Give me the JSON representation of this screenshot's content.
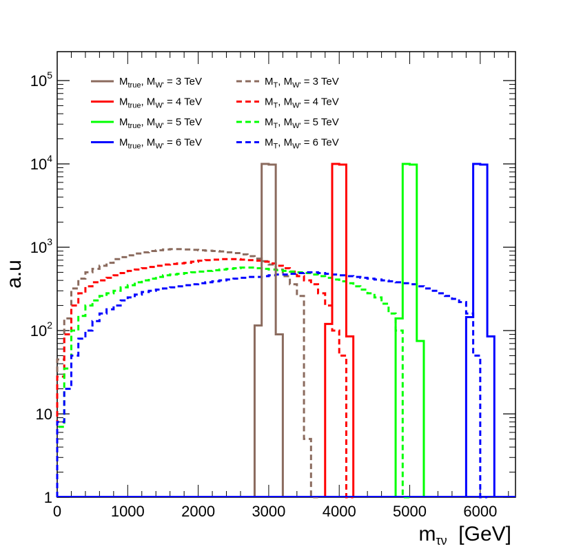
{
  "chart_data": {
    "type": "line",
    "style": "step-histogram",
    "title": "",
    "xlabel": "m",
    "xlabel_sub": "τν",
    "xlabel_unit": "[GeV]",
    "ylabel": "a.u",
    "xlim": [
      0,
      6500
    ],
    "ylim": [
      1,
      150000
    ],
    "yscale": "log",
    "bin_width": 100,
    "grid": false,
    "legend_position": "top-left",
    "x_tick_labels": [
      {
        "v": 0,
        "t": "0"
      },
      {
        "v": 1000,
        "t": "1000"
      },
      {
        "v": 2000,
        "t": "2000"
      },
      {
        "v": 3000,
        "t": "3000"
      },
      {
        "v": 4000,
        "t": "4000"
      },
      {
        "v": 5000,
        "t": "5000"
      },
      {
        "v": 6000,
        "t": "6000"
      }
    ],
    "y_tick_labels": [
      {
        "v": 1,
        "base": "1",
        "exp": ""
      },
      {
        "v": 10,
        "base": "10",
        "exp": ""
      },
      {
        "v": 100,
        "base": "10",
        "exp": "2"
      },
      {
        "v": 1000,
        "base": "10",
        "exp": "3"
      },
      {
        "v": 10000,
        "base": "10",
        "exp": "4"
      },
      {
        "v": 100000,
        "base": "10",
        "exp": "5"
      }
    ],
    "series": [
      {
        "name": "true-3tev",
        "label_main": "M",
        "label_sub": "true",
        "label_rest": ", M",
        "label_sub2": "W'",
        "label_end": " = 3 TeV",
        "color": "#8b6b5e",
        "dashed": false,
        "start": 2800,
        "values": [
          115,
          10000,
          9800,
          90
        ]
      },
      {
        "name": "true-4tev",
        "label_main": "M",
        "label_sub": "true",
        "label_rest": ", M",
        "label_sub2": "W'",
        "label_end": " = 4 TeV",
        "color": "#ff0000",
        "dashed": false,
        "start": 3800,
        "values": [
          120,
          10000,
          9800,
          85
        ]
      },
      {
        "name": "true-5tev",
        "label_main": "M",
        "label_sub": "true",
        "label_rest": ", M",
        "label_sub2": "W'",
        "label_end": " = 5 TeV",
        "color": "#00ff00",
        "dashed": false,
        "start": 4800,
        "values": [
          140,
          10000,
          9800,
          75
        ]
      },
      {
        "name": "true-6tev",
        "label_main": "M",
        "label_sub": "true",
        "label_rest": ", M",
        "label_sub2": "W'",
        "label_end": " = 6 TeV",
        "color": "#0000ff",
        "dashed": false,
        "start": 5800,
        "values": [
          145,
          10000,
          9800,
          85
        ]
      },
      {
        "name": "mt-3tev",
        "label_main": "M",
        "label_sub": "T",
        "label_rest": ", M",
        "label_sub2": "W'",
        "label_end": " = 3 TeV",
        "color": "#8b6b5e",
        "dashed": true,
        "start": 0,
        "values": [
          45,
          140,
          320,
          420,
          500,
          550,
          600,
          650,
          720,
          760,
          800,
          840,
          870,
          900,
          920,
          940,
          950,
          950,
          940,
          930,
          920,
          910,
          900,
          890,
          870,
          850,
          820,
          780,
          730,
          680,
          620,
          540,
          450,
          360,
          260,
          5,
          1
        ]
      },
      {
        "name": "mt-4tev",
        "label_main": "M",
        "label_sub": "T",
        "label_rest": ", M",
        "label_sub2": "W'",
        "label_end": " = 4 TeV",
        "color": "#ff0000",
        "dashed": true,
        "start": 0,
        "values": [
          28,
          90,
          200,
          280,
          340,
          380,
          400,
          430,
          460,
          490,
          520,
          540,
          560,
          580,
          600,
          620,
          630,
          640,
          650,
          670,
          690,
          700,
          710,
          720,
          720,
          720,
          710,
          700,
          690,
          670,
          640,
          600,
          560,
          510,
          450,
          400,
          360,
          280,
          200,
          100,
          50,
          1
        ]
      },
      {
        "name": "mt-5tev",
        "label_main": "M",
        "label_sub": "T",
        "label_rest": ", M",
        "label_sub2": "W'",
        "label_end": " = 5 TeV",
        "color": "#00ff00",
        "dashed": true,
        "start": 0,
        "values": [
          7,
          35,
          100,
          150,
          200,
          230,
          260,
          280,
          300,
          330,
          350,
          380,
          400,
          420,
          440,
          460,
          470,
          480,
          490,
          500,
          510,
          520,
          530,
          540,
          550,
          560,
          570,
          570,
          560,
          550,
          540,
          530,
          520,
          510,
          500,
          490,
          470,
          450,
          430,
          410,
          390,
          370,
          340,
          310,
          280,
          250,
          210,
          160,
          100,
          1
        ]
      },
      {
        "name": "mt-6tev",
        "label_main": "M",
        "label_sub": "T",
        "label_rest": ", M",
        "label_sub2": "W'",
        "label_end": " = 6 TeV",
        "color": "#0000ff",
        "dashed": true,
        "start": 0,
        "values": [
          8,
          20,
          50,
          80,
          100,
          130,
          160,
          180,
          200,
          230,
          250,
          270,
          290,
          300,
          310,
          320,
          330,
          340,
          350,
          360,
          370,
          380,
          390,
          400,
          410,
          420,
          430,
          440,
          440,
          450,
          460,
          470,
          470,
          480,
          490,
          500,
          500,
          490,
          480,
          470,
          460,
          450,
          440,
          430,
          420,
          410,
          400,
          390,
          380,
          370,
          360,
          340,
          320,
          300,
          280,
          260,
          240,
          220,
          160,
          50,
          1
        ]
      }
    ]
  }
}
